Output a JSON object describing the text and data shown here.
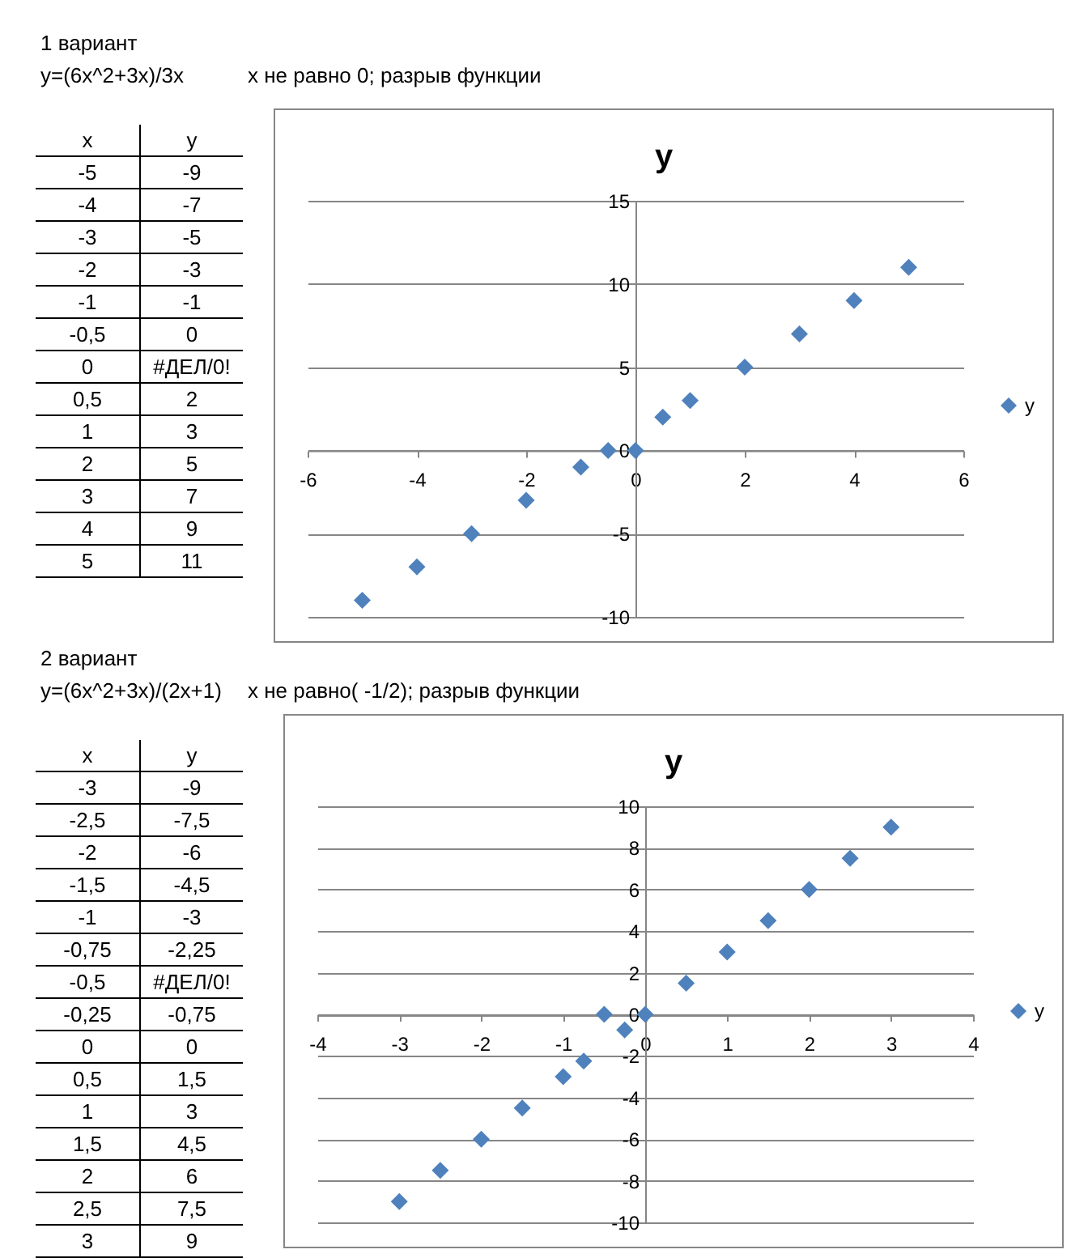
{
  "chart_data": [
    {
      "type": "scatter",
      "title": "y",
      "x": [
        -5,
        -4,
        -3,
        -2,
        -1,
        -0.5,
        0,
        0.5,
        1,
        2,
        3,
        4,
        5
      ],
      "series": [
        {
          "name": "y",
          "color": "#4f81bd",
          "values": [
            -9,
            -7,
            -5,
            -3,
            -1,
            0,
            0,
            2,
            3,
            5,
            7,
            9,
            11
          ]
        }
      ],
      "xlim": [
        -6,
        6
      ],
      "xticks": [
        -6,
        -4,
        -2,
        0,
        2,
        4,
        6
      ],
      "ylim": [
        -10,
        15
      ],
      "yticks": [
        -10,
        -5,
        0,
        5,
        10,
        15
      ],
      "grid": "y",
      "legend": "right",
      "marker": "diamond",
      "annotations": [
        "1 вариант",
        "y=(6x^2+3x)/3x",
        "x не равно 0; разрыв функции",
        "x",
        "y",
        "-5",
        "-9",
        "-4",
        "-7",
        "-3",
        "-5",
        "-2",
        "-3",
        "-1",
        "-1",
        "-0,5",
        "0",
        "0",
        "#ДЕЛ/0!",
        "0,5",
        "2",
        "1",
        "3",
        "2",
        "5",
        "3",
        "7",
        "4",
        "9",
        "5",
        "11"
      ]
    },
    {
      "type": "scatter",
      "title": "y",
      "x": [
        -3,
        -2.5,
        -2,
        -1.5,
        -1,
        -0.75,
        -0.5,
        -0.25,
        0,
        0.5,
        1,
        1.5,
        2,
        2.5,
        3
      ],
      "series": [
        {
          "name": "y",
          "color": "#4f81bd",
          "values": [
            -9,
            -7.5,
            -6,
            -4.5,
            -3,
            -2.25,
            0,
            -0.75,
            0,
            1.5,
            3,
            4.5,
            6,
            7.5,
            9
          ]
        }
      ],
      "xlim": [
        -4,
        4
      ],
      "xticks": [
        -4,
        -3,
        -2,
        -1,
        0,
        1,
        2,
        3,
        4
      ],
      "ylim": [
        -10,
        10
      ],
      "yticks": [
        -10,
        -8,
        -6,
        -4,
        -2,
        0,
        2,
        4,
        6,
        8,
        10
      ],
      "grid": "y",
      "legend": "right",
      "marker": "diamond",
      "annotations": [
        "2 вариант",
        "y=(6x^2+3x)/(2x+1)",
        "x не равно( -1/2); разрыв функции",
        "x",
        "y",
        "-3",
        "-9",
        "-2,5",
        "-7,5",
        "-2",
        "-6",
        "-1,5",
        "-4,5",
        "-1",
        "-3",
        "-0,75",
        "-2,25",
        "-0,5",
        "#ДЕЛ/0!",
        "-0,25",
        "-0,75",
        "0",
        "0",
        "0,5",
        "1,5",
        "1",
        "3",
        "1,5",
        "4,5",
        "2",
        "6",
        "2,5",
        "7,5",
        "3",
        "9"
      ]
    }
  ]
}
